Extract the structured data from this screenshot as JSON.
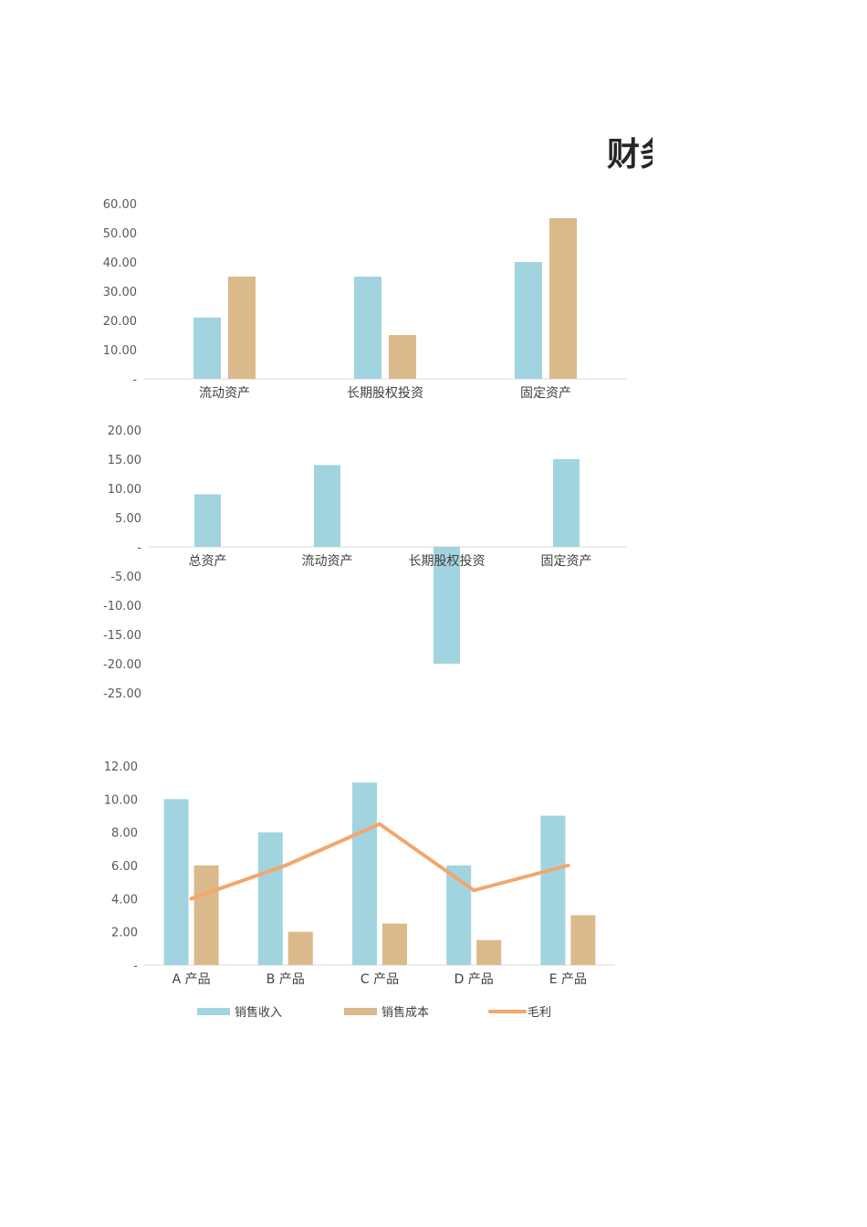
{
  "page_title": "财务",
  "colors": {
    "blue": "#a1d4df",
    "tan": "#dbb98b",
    "orange": "#f2a76c",
    "axis": "#d9d9d9"
  },
  "chart_data": [
    {
      "type": "bar",
      "categories": [
        "流动资产",
        "长期股权投资",
        "固定资产"
      ],
      "series": [
        {
          "values": [
            21,
            35,
            40
          ]
        },
        {
          "values": [
            35,
            15,
            55
          ]
        }
      ],
      "ylim": [
        0,
        60
      ],
      "yticks": [
        "-",
        "10.00",
        "20.00",
        "30.00",
        "40.00",
        "50.00",
        "60.00"
      ]
    },
    {
      "type": "bar",
      "categories": [
        "总资产",
        "流动资产",
        "长期股权投资",
        "固定资产"
      ],
      "series": [
        {
          "values": [
            9,
            14,
            -20,
            15
          ]
        }
      ],
      "ylim": [
        -25,
        20
      ],
      "yticks": [
        "-25.00",
        "-20.00",
        "-15.00",
        "-10.00",
        "-5.00",
        "-",
        "5.00",
        "10.00",
        "15.00",
        "20.00"
      ]
    },
    {
      "type": "bar",
      "categories": [
        "A 产品",
        "B 产品",
        "C 产品",
        "D 产品",
        "E 产品"
      ],
      "series": [
        {
          "name": "销售收入",
          "type": "bar",
          "values": [
            10,
            8,
            11,
            6,
            9
          ]
        },
        {
          "name": "销售成本",
          "type": "bar",
          "values": [
            6,
            2,
            2.5,
            1.5,
            3
          ]
        },
        {
          "name": "毛利",
          "type": "line",
          "values": [
            4,
            6,
            8.5,
            4.5,
            6
          ]
        }
      ],
      "ylim": [
        0,
        12
      ],
      "yticks": [
        "-",
        "2.00",
        "4.00",
        "6.00",
        "8.00",
        "10.00",
        "12.00"
      ],
      "legend": "bottom"
    }
  ]
}
